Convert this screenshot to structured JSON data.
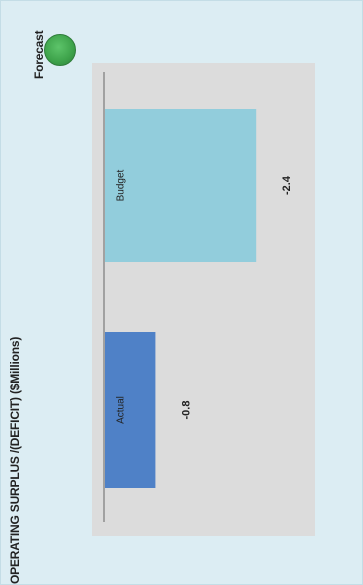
{
  "header": {
    "title": "OPERATING SURPLUS /(DEFICIT) ($Millions)",
    "forecast_label": "Forecast",
    "status_color": "#3da24a"
  },
  "chart_data": {
    "type": "bar",
    "orientation": "horizontal",
    "title": "OPERATING SURPLUS /(DEFICIT) ($Millions)",
    "categories": [
      "Actual",
      "Budget"
    ],
    "values": [
      -0.8,
      -2.4
    ],
    "value_labels": [
      "-0.8",
      "-2.4"
    ],
    "colors": [
      "#4f81c7",
      "#92cddc"
    ],
    "xlim": [
      -2.9,
      0
    ],
    "grid": false,
    "legend": "none"
  }
}
